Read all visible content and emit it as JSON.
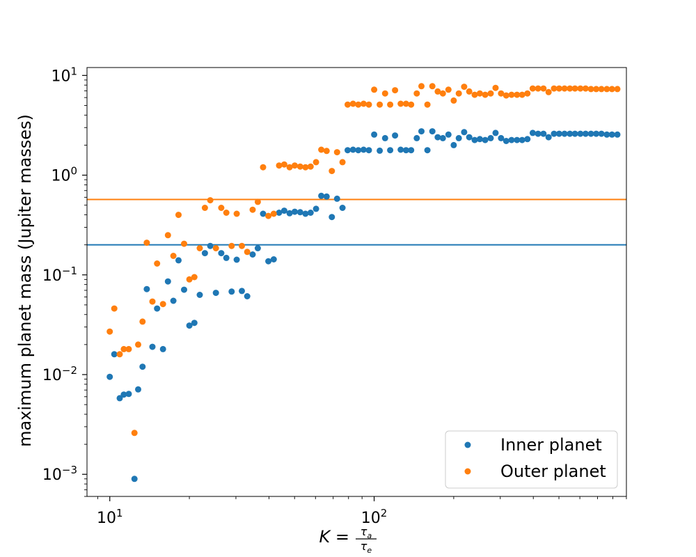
{
  "chart_data": {
    "type": "scatter",
    "xscale": "log",
    "yscale": "log",
    "xlim": [
      8.2,
      900
    ],
    "ylim": [
      0.0006,
      12
    ],
    "ylabel": "maximum planet mass (Jupiter masses)",
    "xlabel": {
      "prefix": "K = ",
      "numerator": "τ",
      "numerator_sub": "a",
      "denominator": "τ",
      "denominator_sub": "e"
    },
    "xticks": [
      {
        "value": 10,
        "base": "10",
        "exp": "1"
      },
      {
        "value": 100,
        "base": "10",
        "exp": "2"
      }
    ],
    "yticks": [
      {
        "value": 0.001,
        "base": "10",
        "exp": "−3"
      },
      {
        "value": 0.01,
        "base": "10",
        "exp": "−2"
      },
      {
        "value": 0.1,
        "base": "10",
        "exp": "−1"
      },
      {
        "value": 1,
        "base": "10",
        "exp": "0"
      },
      {
        "value": 10,
        "base": "10",
        "exp": "1"
      }
    ],
    "hlines": [
      {
        "y": 0.2,
        "color": "#1f77b4"
      },
      {
        "y": 0.57,
        "color": "#ff7f0e"
      }
    ],
    "legend_position": "lower-right",
    "series": [
      {
        "name": "Inner planet",
        "color": "#1f77b4",
        "points": [
          [
            10.0,
            0.0095
          ],
          [
            10.4,
            0.016
          ],
          [
            10.9,
            0.0058
          ],
          [
            11.3,
            0.0063
          ],
          [
            11.8,
            0.0064
          ],
          [
            12.4,
            0.0009
          ],
          [
            12.8,
            0.0071
          ],
          [
            13.3,
            0.012
          ],
          [
            13.8,
            0.072
          ],
          [
            14.5,
            0.019
          ],
          [
            15.1,
            0.046
          ],
          [
            15.9,
            0.018
          ],
          [
            16.6,
            0.086
          ],
          [
            17.4,
            0.055
          ],
          [
            18.2,
            0.14
          ],
          [
            19.1,
            0.071
          ],
          [
            20.0,
            0.031
          ],
          [
            20.9,
            0.033
          ],
          [
            21.9,
            0.063
          ],
          [
            22.9,
            0.165
          ],
          [
            24.0,
            0.195
          ],
          [
            25.2,
            0.066
          ],
          [
            26.4,
            0.165
          ],
          [
            27.6,
            0.148
          ],
          [
            28.9,
            0.068
          ],
          [
            30.2,
            0.142
          ],
          [
            31.6,
            0.069
          ],
          [
            33.1,
            0.061
          ],
          [
            34.7,
            0.16
          ],
          [
            36.3,
            0.185
          ],
          [
            38.0,
            0.41
          ],
          [
            39.8,
            0.137
          ],
          [
            41.7,
            0.143
          ],
          [
            43.7,
            0.42
          ],
          [
            45.7,
            0.44
          ],
          [
            47.9,
            0.415
          ],
          [
            50.1,
            0.43
          ],
          [
            52.5,
            0.425
          ],
          [
            55.0,
            0.41
          ],
          [
            57.5,
            0.42
          ],
          [
            60.3,
            0.46
          ],
          [
            63.1,
            0.62
          ],
          [
            66.1,
            0.61
          ],
          [
            69.2,
            0.38
          ],
          [
            72.4,
            0.58
          ],
          [
            75.9,
            0.47
          ],
          [
            79.4,
            1.78
          ],
          [
            83.2,
            1.8
          ],
          [
            87.1,
            1.78
          ],
          [
            91.2,
            1.8
          ],
          [
            95.5,
            1.78
          ],
          [
            100,
            2.55
          ],
          [
            105,
            1.76
          ],
          [
            110,
            2.35
          ],
          [
            115,
            1.78
          ],
          [
            120,
            2.5
          ],
          [
            126,
            1.8
          ],
          [
            132,
            1.78
          ],
          [
            138,
            1.78
          ],
          [
            145,
            2.35
          ],
          [
            151,
            2.75
          ],
          [
            159,
            1.78
          ],
          [
            166,
            2.75
          ],
          [
            174,
            2.4
          ],
          [
            182,
            2.35
          ],
          [
            191,
            2.55
          ],
          [
            200,
            2.0
          ],
          [
            209,
            2.35
          ],
          [
            219,
            2.7
          ],
          [
            229,
            2.4
          ],
          [
            240,
            2.25
          ],
          [
            251,
            2.3
          ],
          [
            263,
            2.25
          ],
          [
            276,
            2.35
          ],
          [
            288,
            2.65
          ],
          [
            302,
            2.35
          ],
          [
            316,
            2.2
          ],
          [
            331,
            2.25
          ],
          [
            347,
            2.25
          ],
          [
            363,
            2.25
          ],
          [
            380,
            2.3
          ],
          [
            398,
            2.65
          ],
          [
            417,
            2.6
          ],
          [
            437,
            2.6
          ],
          [
            457,
            2.4
          ],
          [
            479,
            2.6
          ],
          [
            501,
            2.6
          ],
          [
            525,
            2.6
          ],
          [
            550,
            2.6
          ],
          [
            575,
            2.6
          ],
          [
            603,
            2.6
          ],
          [
            631,
            2.6
          ],
          [
            661,
            2.6
          ],
          [
            692,
            2.6
          ],
          [
            724,
            2.6
          ],
          [
            759,
            2.55
          ],
          [
            794,
            2.55
          ],
          [
            832,
            2.55
          ]
        ]
      },
      {
        "name": "Outer planet",
        "color": "#ff7f0e",
        "points": [
          [
            10.0,
            0.027
          ],
          [
            10.4,
            0.046
          ],
          [
            10.9,
            0.016
          ],
          [
            11.3,
            0.018
          ],
          [
            11.8,
            0.018
          ],
          [
            12.4,
            0.0026
          ],
          [
            12.8,
            0.02
          ],
          [
            13.3,
            0.034
          ],
          [
            13.8,
            0.21
          ],
          [
            14.5,
            0.054
          ],
          [
            15.1,
            0.13
          ],
          [
            15.9,
            0.051
          ],
          [
            16.6,
            0.25
          ],
          [
            17.4,
            0.155
          ],
          [
            18.2,
            0.4
          ],
          [
            19.1,
            0.205
          ],
          [
            20.0,
            0.09
          ],
          [
            20.9,
            0.095
          ],
          [
            21.9,
            0.185
          ],
          [
            22.9,
            0.47
          ],
          [
            24.0,
            0.56
          ],
          [
            25.2,
            0.185
          ],
          [
            26.4,
            0.47
          ],
          [
            27.6,
            0.42
          ],
          [
            28.9,
            0.195
          ],
          [
            30.2,
            0.41
          ],
          [
            31.6,
            0.195
          ],
          [
            33.1,
            0.17
          ],
          [
            34.7,
            0.45
          ],
          [
            36.3,
            0.54
          ],
          [
            38.0,
            1.2
          ],
          [
            39.8,
            0.39
          ],
          [
            41.7,
            0.41
          ],
          [
            43.7,
            1.25
          ],
          [
            45.7,
            1.28
          ],
          [
            47.9,
            1.2
          ],
          [
            50.1,
            1.25
          ],
          [
            52.5,
            1.22
          ],
          [
            55.0,
            1.2
          ],
          [
            57.5,
            1.22
          ],
          [
            60.3,
            1.35
          ],
          [
            63.1,
            1.8
          ],
          [
            66.1,
            1.75
          ],
          [
            69.2,
            1.1
          ],
          [
            72.4,
            1.7
          ],
          [
            75.9,
            1.35
          ],
          [
            79.4,
            5.1
          ],
          [
            83.2,
            5.2
          ],
          [
            87.1,
            5.1
          ],
          [
            91.2,
            5.2
          ],
          [
            95.5,
            5.1
          ],
          [
            100,
            7.2
          ],
          [
            105,
            5.1
          ],
          [
            110,
            6.6
          ],
          [
            115,
            5.1
          ],
          [
            120,
            7.1
          ],
          [
            126,
            5.2
          ],
          [
            132,
            5.2
          ],
          [
            138,
            5.1
          ],
          [
            145,
            6.6
          ],
          [
            151,
            7.8
          ],
          [
            159,
            5.1
          ],
          [
            166,
            7.8
          ],
          [
            174,
            6.9
          ],
          [
            182,
            6.6
          ],
          [
            191,
            7.2
          ],
          [
            200,
            5.6
          ],
          [
            209,
            6.6
          ],
          [
            219,
            7.7
          ],
          [
            229,
            6.9
          ],
          [
            240,
            6.4
          ],
          [
            251,
            6.6
          ],
          [
            263,
            6.4
          ],
          [
            276,
            6.6
          ],
          [
            288,
            7.5
          ],
          [
            302,
            6.6
          ],
          [
            316,
            6.3
          ],
          [
            331,
            6.4
          ],
          [
            347,
            6.4
          ],
          [
            363,
            6.4
          ],
          [
            380,
            6.6
          ],
          [
            398,
            7.4
          ],
          [
            417,
            7.4
          ],
          [
            437,
            7.4
          ],
          [
            457,
            6.8
          ],
          [
            479,
            7.4
          ],
          [
            501,
            7.4
          ],
          [
            525,
            7.4
          ],
          [
            550,
            7.4
          ],
          [
            575,
            7.4
          ],
          [
            603,
            7.4
          ],
          [
            631,
            7.4
          ],
          [
            661,
            7.3
          ],
          [
            692,
            7.3
          ],
          [
            724,
            7.3
          ],
          [
            759,
            7.3
          ],
          [
            794,
            7.3
          ],
          [
            832,
            7.3
          ]
        ]
      }
    ]
  }
}
